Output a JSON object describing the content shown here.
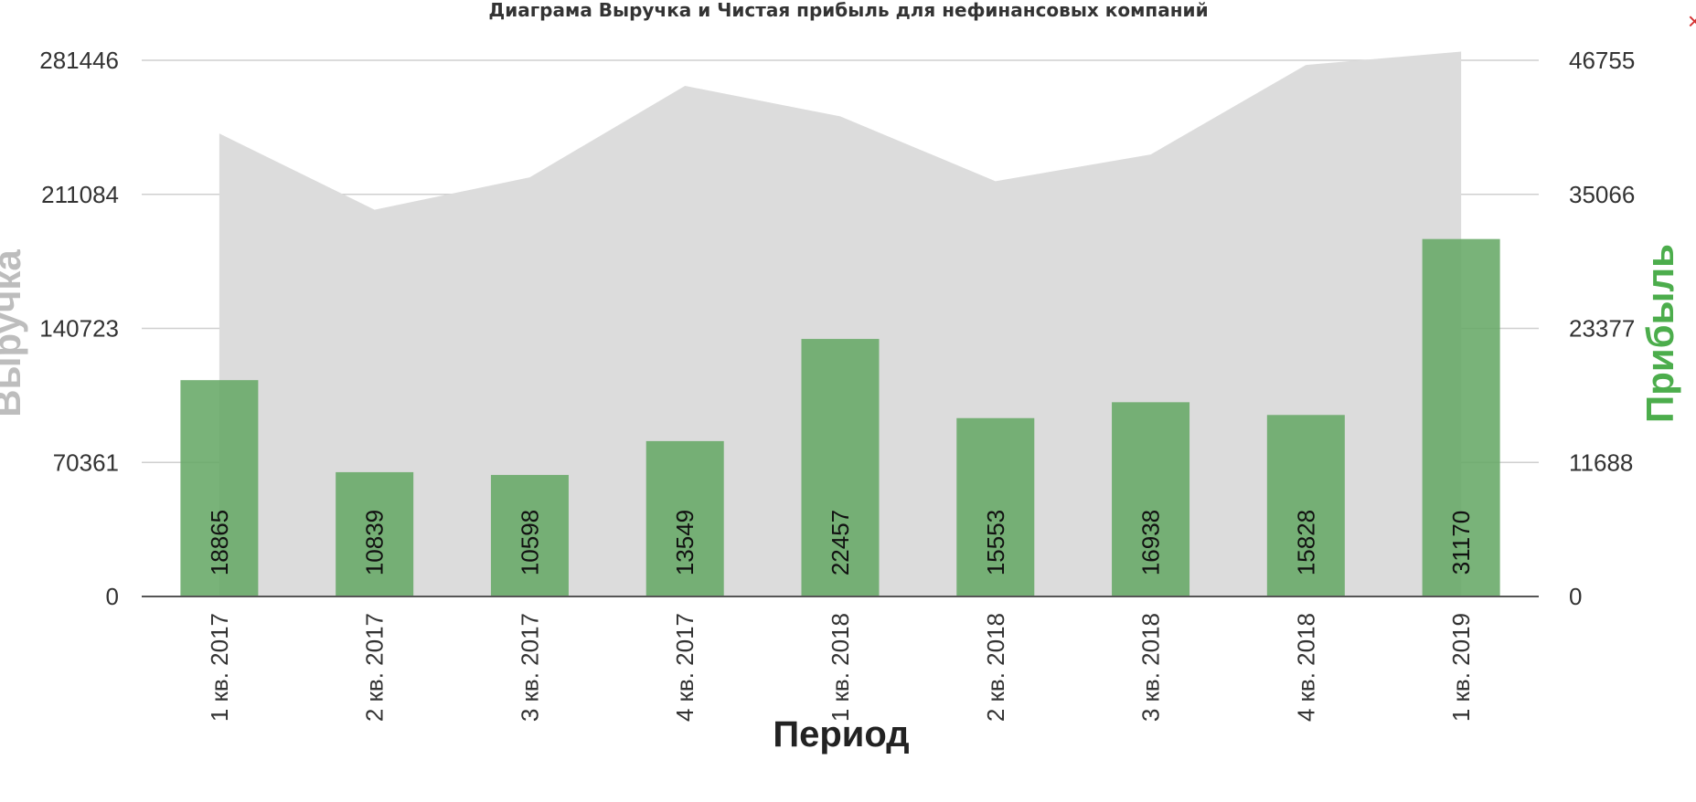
{
  "chart_data": {
    "type": "bar",
    "title": "Диаграма Выручка и Чистая прибыль для нефинансовых компаний",
    "xlabel": "Период",
    "ylabel_left": "Выручка",
    "ylabel_right": "Прибыль",
    "categories": [
      "1 кв. 2017",
      "2 кв. 2017",
      "3 кв. 2017",
      "4 кв. 2017",
      "1 кв. 2018",
      "2 кв. 2018",
      "3 кв. 2018",
      "4 кв. 2018",
      "1 кв. 2019"
    ],
    "series": [
      {
        "name": "Выручка",
        "type": "area",
        "axis": "left",
        "color": "#dcdcdc",
        "values": [
          243000,
          203000,
          220000,
          268000,
          252000,
          218000,
          232000,
          279000,
          286000
        ]
      },
      {
        "name": "Прибыль",
        "type": "bar",
        "axis": "right",
        "color": "#66a866",
        "values": [
          18865,
          10839,
          10598,
          13549,
          22457,
          15553,
          16938,
          15828,
          31170
        ],
        "data_labels": [
          "18865",
          "10839",
          "10598",
          "13549",
          "22457",
          "15553",
          "16938",
          "15828",
          "31170"
        ]
      }
    ],
    "ylim_left": [
      0,
      281446
    ],
    "ylim_right": [
      0,
      46755
    ],
    "yticks_left": [
      "0",
      "70361",
      "140723",
      "211084",
      "281446"
    ],
    "yticks_right": [
      "0",
      "11688",
      "23377",
      "35066",
      "46755"
    ],
    "grid": true,
    "legend": "none"
  },
  "close_icon": "×"
}
